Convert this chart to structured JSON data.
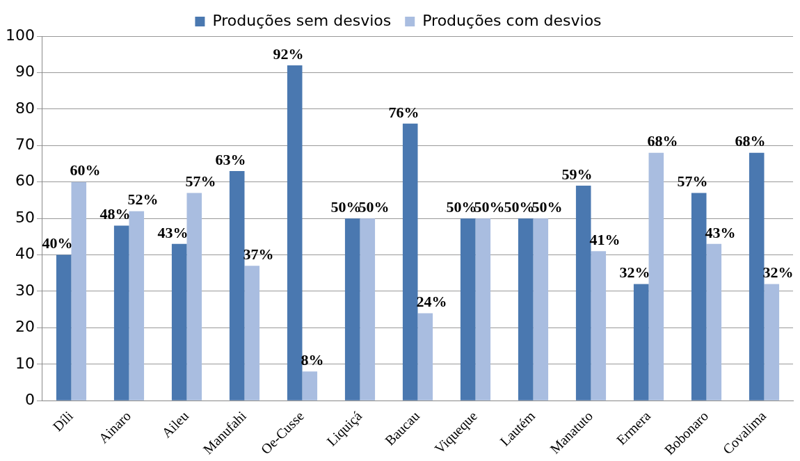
{
  "chart_data": {
    "type": "bar",
    "categories": [
      "Díli",
      "Ainaro",
      "Aileu",
      "Manufahi",
      "Oe-Cusse",
      "Liquiçá",
      "Baucau",
      "Viqueque",
      "Lautém",
      "Manatuto",
      "Ermera",
      "Bobonaro",
      "Covalima"
    ],
    "series": [
      {
        "name": "Produções sem desvios",
        "color": "#4a78b0",
        "values": [
          40,
          48,
          43,
          63,
          92,
          50,
          76,
          50,
          50,
          59,
          32,
          57,
          68
        ],
        "value_labels": [
          "40%",
          "48%",
          "43%",
          "63%",
          "92%",
          "50%",
          "76%",
          "50%",
          "50%",
          "59%",
          "32%",
          "57%",
          "68%"
        ]
      },
      {
        "name": "Produções com desvios",
        "color": "#a9bde0",
        "values": [
          60,
          52,
          57,
          37,
          8,
          50,
          24,
          50,
          50,
          41,
          68,
          43,
          32
        ],
        "value_labels": [
          "60%",
          "52%",
          "57%",
          "37%",
          "8%",
          "50%",
          "24%",
          "50%",
          "50%",
          "41%",
          "68%",
          "43%",
          "32%"
        ]
      }
    ],
    "ylim": [
      0,
      100
    ],
    "yticks": [
      0,
      10,
      20,
      30,
      40,
      50,
      60,
      70,
      80,
      90,
      100
    ],
    "grid": "y",
    "legend": "top"
  }
}
